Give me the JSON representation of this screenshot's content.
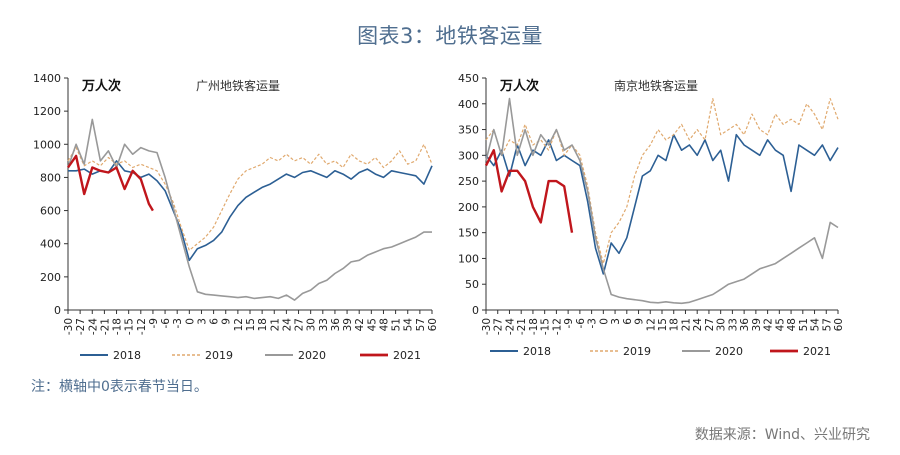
{
  "figure": {
    "title": "图表3：地铁客运量",
    "note": "注：横轴中0表示春节当日。",
    "source": "数据来源：Wind、兴业研究"
  },
  "colors": {
    "2018": "#2c5f94",
    "2019": "#e0a96e",
    "2020": "#999999",
    "2021": "#c0161c",
    "title": "#4f6e8f"
  },
  "chart_data": [
    {
      "type": "line",
      "title": "广州地铁客运量",
      "ylabel": "万人次",
      "x_ticks": [
        -30,
        -27,
        -24,
        -21,
        -18,
        -15,
        -12,
        -9,
        -6,
        -3,
        0,
        3,
        6,
        9,
        12,
        15,
        18,
        21,
        24,
        27,
        30,
        33,
        36,
        39,
        42,
        45,
        48,
        51,
        54,
        57,
        60
      ],
      "xlim": [
        -30,
        60
      ],
      "ylim": [
        0,
        1400
      ],
      "y_ticks": [
        0,
        200,
        400,
        600,
        800,
        1000,
        1200,
        1400
      ],
      "series": [
        {
          "name": "2018",
          "x": [
            -30,
            -28,
            -26,
            -24,
            -22,
            -20,
            -18,
            -16,
            -14,
            -12,
            -10,
            -8,
            -6,
            -4,
            -2,
            0,
            2,
            4,
            6,
            8,
            10,
            12,
            14,
            16,
            18,
            20,
            22,
            24,
            26,
            28,
            30,
            32,
            34,
            36,
            38,
            40,
            42,
            44,
            46,
            48,
            50,
            52,
            54,
            56,
            58,
            60
          ],
          "y": [
            840,
            840,
            850,
            820,
            840,
            830,
            900,
            840,
            830,
            800,
            820,
            780,
            720,
            600,
            480,
            300,
            370,
            390,
            420,
            470,
            560,
            630,
            680,
            710,
            740,
            760,
            790,
            820,
            800,
            830,
            840,
            820,
            800,
            840,
            820,
            790,
            830,
            850,
            820,
            800,
            840,
            830,
            820,
            810,
            760,
            870
          ]
        },
        {
          "name": "2019",
          "x": [
            -30,
            -28,
            -26,
            -24,
            -22,
            -20,
            -18,
            -16,
            -14,
            -12,
            -10,
            -8,
            -6,
            -4,
            -2,
            0,
            2,
            4,
            6,
            8,
            10,
            12,
            14,
            16,
            18,
            20,
            22,
            24,
            26,
            28,
            30,
            32,
            34,
            36,
            38,
            40,
            42,
            44,
            46,
            48,
            50,
            52,
            54,
            56,
            58,
            60
          ],
          "y": [
            900,
            980,
            870,
            900,
            870,
            920,
            880,
            900,
            860,
            880,
            860,
            840,
            760,
            650,
            500,
            360,
            400,
            440,
            500,
            600,
            700,
            790,
            840,
            860,
            880,
            920,
            900,
            940,
            900,
            920,
            880,
            940,
            880,
            900,
            860,
            940,
            900,
            880,
            920,
            860,
            900,
            960,
            880,
            900,
            1000,
            880
          ]
        },
        {
          "name": "2020",
          "x": [
            -30,
            -28,
            -26,
            -24,
            -22,
            -20,
            -18,
            -16,
            -14,
            -12,
            -10,
            -8,
            -6,
            -4,
            -2,
            0,
            2,
            4,
            6,
            8,
            10,
            12,
            14,
            16,
            18,
            20,
            22,
            24,
            26,
            28,
            30,
            32,
            34,
            36,
            38,
            40,
            42,
            44,
            46,
            48,
            50,
            52,
            54,
            56,
            58,
            60
          ],
          "y": [
            860,
            1000,
            880,
            1150,
            900,
            960,
            860,
            1000,
            940,
            980,
            960,
            950,
            800,
            620,
            440,
            260,
            110,
            95,
            90,
            85,
            80,
            75,
            80,
            70,
            75,
            80,
            70,
            90,
            60,
            100,
            120,
            160,
            180,
            220,
            250,
            290,
            300,
            330,
            350,
            370,
            380,
            400,
            420,
            440,
            470,
            470
          ]
        },
        {
          "name": "2021",
          "x": [
            -30,
            -28,
            -26,
            -24,
            -22,
            -20,
            -18,
            -16,
            -14,
            -12,
            -10,
            -9
          ],
          "y": [
            860,
            930,
            700,
            860,
            840,
            830,
            860,
            730,
            840,
            790,
            640,
            600
          ]
        }
      ]
    },
    {
      "type": "line",
      "title": "南京地铁客运量",
      "ylabel": "万人次",
      "x_ticks": [
        -30,
        -27,
        -24,
        -21,
        -18,
        -15,
        -12,
        -9,
        -6,
        -3,
        0,
        3,
        6,
        9,
        12,
        15,
        18,
        21,
        24,
        27,
        30,
        33,
        36,
        39,
        42,
        45,
        48,
        51,
        54,
        57,
        60
      ],
      "xlim": [
        -30,
        60
      ],
      "ylim": [
        0,
        450
      ],
      "y_ticks": [
        0,
        50,
        100,
        150,
        200,
        250,
        300,
        350,
        400,
        450
      ],
      "series": [
        {
          "name": "2018",
          "x": [
            -30,
            -28,
            -26,
            -24,
            -22,
            -20,
            -18,
            -16,
            -14,
            -12,
            -10,
            -8,
            -6,
            -4,
            -2,
            0,
            2,
            4,
            6,
            8,
            10,
            12,
            14,
            16,
            18,
            20,
            22,
            24,
            26,
            28,
            30,
            32,
            34,
            36,
            38,
            40,
            42,
            44,
            46,
            48,
            50,
            52,
            54,
            56,
            58,
            60
          ],
          "y": [
            300,
            280,
            310,
            260,
            320,
            280,
            310,
            300,
            330,
            290,
            300,
            290,
            280,
            210,
            120,
            70,
            130,
            110,
            140,
            200,
            260,
            270,
            300,
            290,
            340,
            310,
            320,
            300,
            330,
            290,
            310,
            250,
            340,
            320,
            310,
            300,
            330,
            310,
            300,
            230,
            320,
            310,
            300,
            320,
            290,
            315
          ]
        },
        {
          "name": "2019",
          "x": [
            -30,
            -28,
            -26,
            -24,
            -22,
            -20,
            -18,
            -16,
            -14,
            -12,
            -10,
            -8,
            -6,
            -4,
            -2,
            0,
            2,
            4,
            6,
            8,
            10,
            12,
            14,
            16,
            18,
            20,
            22,
            24,
            26,
            28,
            30,
            32,
            34,
            36,
            38,
            40,
            42,
            44,
            46,
            48,
            50,
            52,
            54,
            56,
            58,
            60
          ],
          "y": [
            330,
            350,
            300,
            330,
            320,
            360,
            320,
            330,
            310,
            350,
            300,
            320,
            300,
            240,
            150,
            90,
            150,
            170,
            200,
            260,
            300,
            320,
            350,
            330,
            340,
            360,
            330,
            350,
            330,
            410,
            340,
            350,
            360,
            340,
            380,
            350,
            340,
            380,
            360,
            370,
            360,
            400,
            380,
            350,
            410,
            370
          ]
        },
        {
          "name": "2020",
          "x": [
            -30,
            -28,
            -26,
            -24,
            -22,
            -20,
            -18,
            -16,
            -14,
            -12,
            -10,
            -8,
            -6,
            -4,
            -2,
            0,
            2,
            4,
            6,
            8,
            10,
            12,
            14,
            16,
            18,
            20,
            22,
            24,
            26,
            28,
            30,
            32,
            34,
            36,
            38,
            40,
            42,
            44,
            46,
            48,
            50,
            52,
            54,
            56,
            58,
            60
          ],
          "y": [
            290,
            350,
            300,
            410,
            300,
            350,
            300,
            340,
            320,
            350,
            310,
            320,
            290,
            230,
            140,
            80,
            30,
            25,
            22,
            20,
            18,
            15,
            14,
            16,
            14,
            13,
            15,
            20,
            25,
            30,
            40,
            50,
            55,
            60,
            70,
            80,
            85,
            90,
            100,
            110,
            120,
            130,
            140,
            100,
            170,
            160
          ]
        },
        {
          "name": "2021",
          "x": [
            -30,
            -28,
            -26,
            -24,
            -22,
            -20,
            -18,
            -16,
            -14,
            -12,
            -10,
            -8
          ],
          "y": [
            280,
            310,
            230,
            270,
            270,
            250,
            200,
            170,
            250,
            250,
            240,
            150
          ]
        }
      ]
    }
  ]
}
